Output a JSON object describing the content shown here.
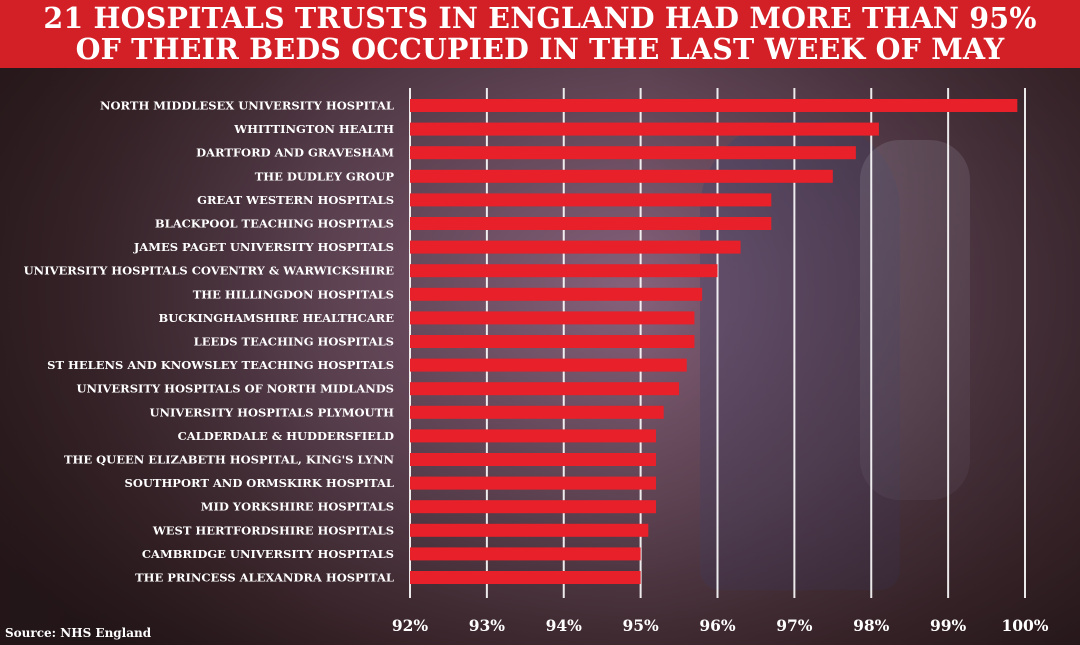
{
  "title": {
    "line1": "21 HOSPITALS TRUSTS IN ENGLAND HAD MORE THAN 95%",
    "line2": "OF THEIR BEDS OCCUPIED IN THE LAST WEEK OF MAY"
  },
  "source": "Source: NHS England",
  "colors": {
    "bar": "#e8202a",
    "banner": "#d32027",
    "text": "#ffffff"
  },
  "chart_data": {
    "type": "bar",
    "orientation": "horizontal",
    "title": "21 HOSPITALS TRUSTS IN ENGLAND HAD MORE THAN 95% OF THEIR BEDS OCCUPIED IN THE LAST WEEK OF MAY",
    "xlabel": "",
    "ylabel": "",
    "xlim": [
      92,
      100
    ],
    "unit": "%",
    "grid": true,
    "tick_values": [
      92,
      93,
      94,
      95,
      96,
      97,
      98,
      99,
      100
    ],
    "tick_labels": [
      "92%",
      "93%",
      "94%",
      "95%",
      "96%",
      "97%",
      "98%",
      "99%",
      "100%"
    ],
    "categories": [
      "NORTH MIDDLESEX UNIVERSITY HOSPITAL",
      "WHITTINGTON HEALTH",
      "DARTFORD AND GRAVESHAM",
      "THE DUDLEY GROUP",
      "GREAT WESTERN HOSPITALS",
      "BLACKPOOL TEACHING HOSPITALS",
      "JAMES PAGET UNIVERSITY HOSPITALS",
      "UNIVERSITY HOSPITALS COVENTRY & WARWICKSHIRE",
      "THE HILLINGDON HOSPITALS",
      "BUCKINGHAMSHIRE HEALTHCARE",
      "LEEDS TEACHING HOSPITALS",
      "ST HELENS AND KNOWSLEY TEACHING HOSPITALS",
      "UNIVERSITY HOSPITALS OF NORTH MIDLANDS",
      "UNIVERSITY HOSPITALS PLYMOUTH",
      "CALDERDALE & HUDDERSFIELD",
      "THE QUEEN ELIZABETH HOSPITAL, KING'S LYNN",
      "SOUTHPORT AND ORMSKIRK HOSPITAL",
      "MID YORKSHIRE HOSPITALS",
      "WEST HERTFORDSHIRE HOSPITALS",
      "CAMBRIDGE UNIVERSITY HOSPITALS",
      "THE PRINCESS ALEXANDRA HOSPITAL"
    ],
    "values": [
      99.9,
      98.1,
      97.8,
      97.5,
      96.7,
      96.7,
      96.3,
      96.0,
      95.8,
      95.7,
      95.7,
      95.6,
      95.5,
      95.3,
      95.2,
      95.2,
      95.2,
      95.2,
      95.1,
      95.0,
      95.0
    ]
  }
}
